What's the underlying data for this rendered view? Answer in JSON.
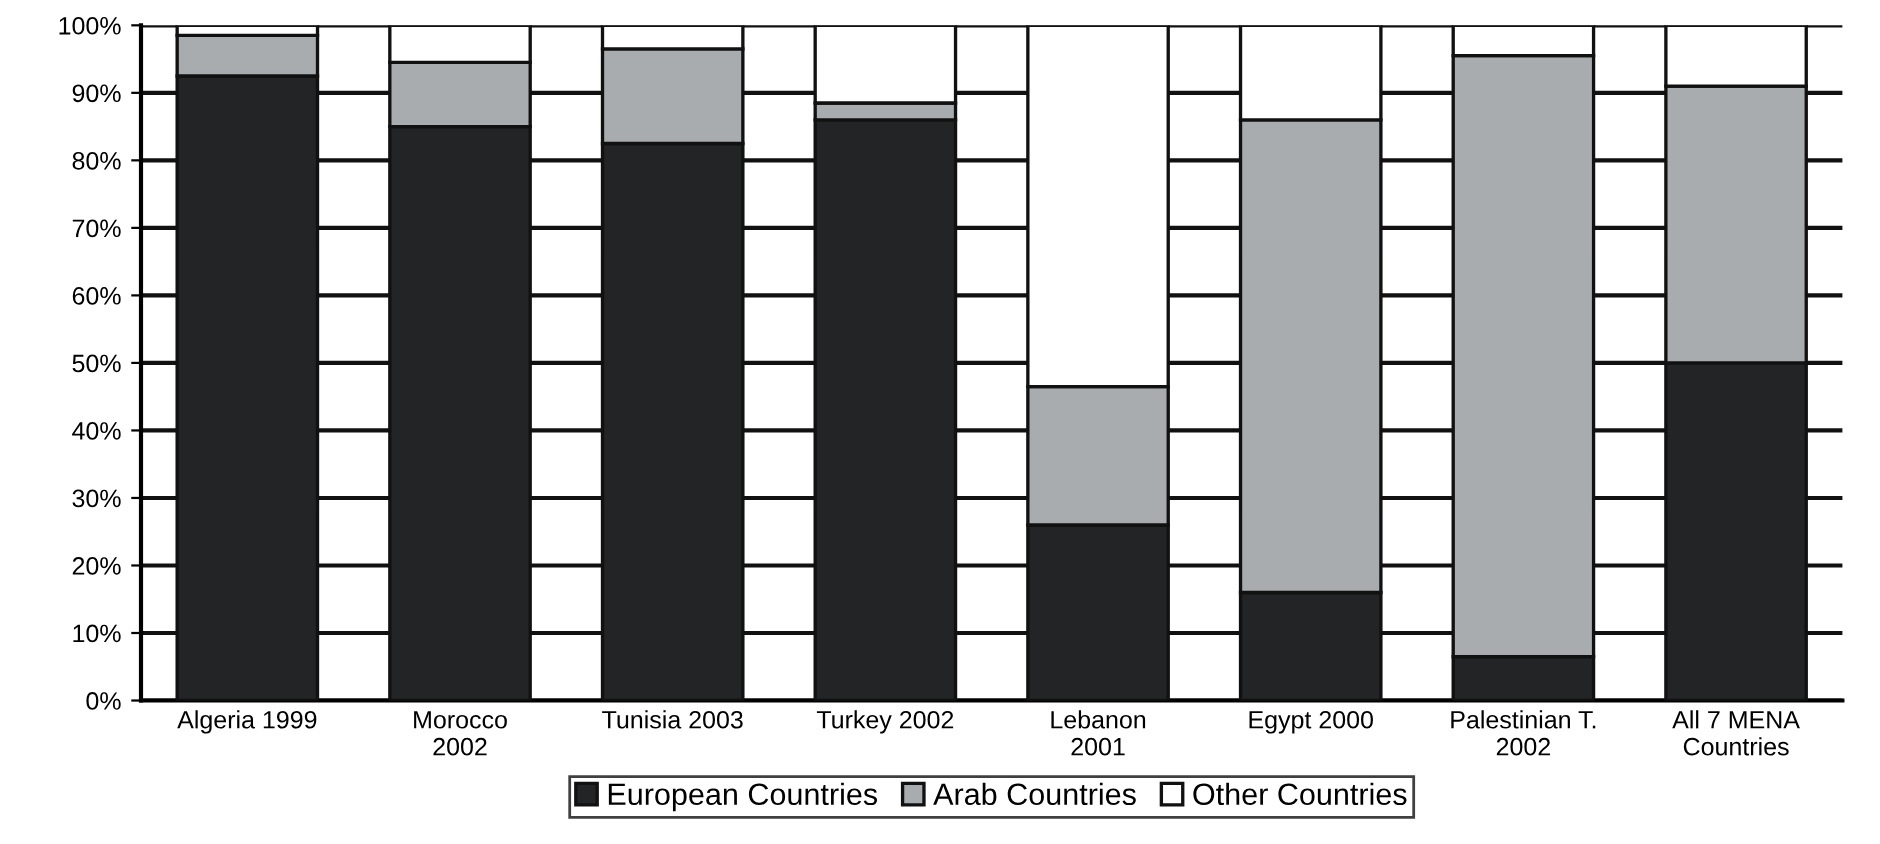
{
  "chart_data": {
    "type": "bar",
    "stacked": true,
    "categories": [
      "Algeria 1999",
      "Morocco\n2002",
      "Tunisia 2003",
      "Turkey 2002",
      "Lebanon\n2001",
      "Egypt 2000",
      "Palestinian T.\n2002",
      "All 7 MENA\nCountries"
    ],
    "series": [
      {
        "name": "European Countries",
        "color": "#222425",
        "values": [
          92.5,
          85,
          82.5,
          86,
          26,
          16,
          6.5,
          50
        ]
      },
      {
        "name": "Arab Countries",
        "color": "#a9acae",
        "values": [
          6,
          9.5,
          14,
          2.5,
          20.5,
          70,
          89,
          41
        ]
      },
      {
        "name": "Other Countries",
        "color": "#ffffff",
        "values": [
          1.5,
          5.5,
          3.5,
          11.5,
          53.5,
          14,
          4.5,
          9
        ]
      }
    ],
    "ylim": [
      0,
      100
    ],
    "yticks": [
      {
        "value": 0,
        "label": "0%"
      },
      {
        "value": 10,
        "label": "10%"
      },
      {
        "value": 20,
        "label": "20%"
      },
      {
        "value": 30,
        "label": "30%"
      },
      {
        "value": 40,
        "label": "40%"
      },
      {
        "value": 50,
        "label": "50%"
      },
      {
        "value": 60,
        "label": "60%"
      },
      {
        "value": 70,
        "label": "70%"
      },
      {
        "value": 80,
        "label": "80%"
      },
      {
        "value": 90,
        "label": "90%"
      },
      {
        "value": 100,
        "label": "100%"
      }
    ],
    "grid": "y",
    "legend": "bottom"
  }
}
